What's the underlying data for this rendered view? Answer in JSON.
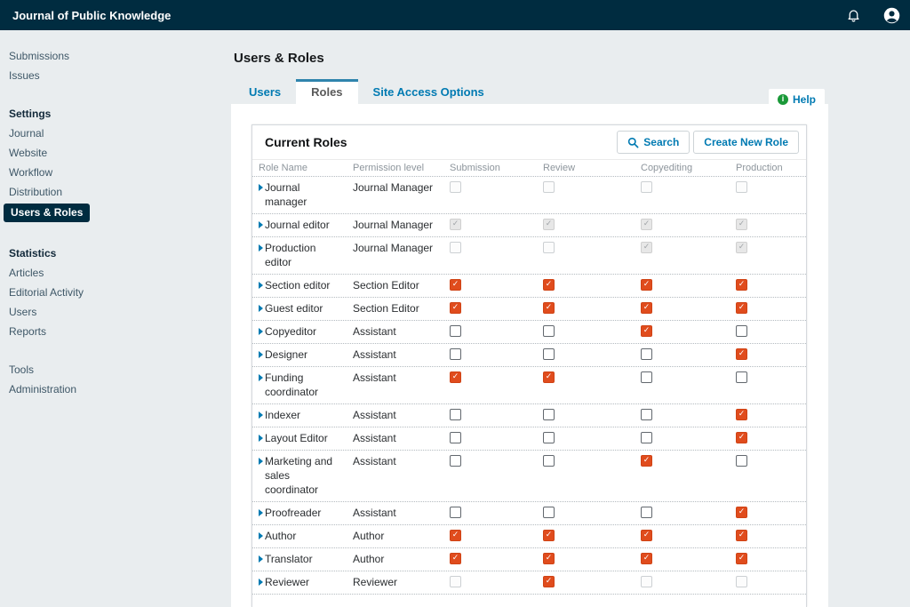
{
  "colors": {
    "topbar_bg": "#002c40",
    "accent_blue": "#007ab2",
    "checkbox_orange": "#e04c1d",
    "help_green": "#1a9938",
    "page_bg": "#e9edef"
  },
  "topbar": {
    "title": "Journal of Public Knowledge"
  },
  "sidebar": {
    "sections": [
      {
        "items": [
          "Submissions",
          "Issues"
        ]
      },
      {
        "header": "Settings",
        "items": [
          "Journal",
          "Website",
          "Workflow",
          "Distribution",
          "Users & Roles"
        ],
        "active_item": "Users & Roles"
      },
      {
        "header": "Statistics",
        "items": [
          "Articles",
          "Editorial Activity",
          "Users",
          "Reports"
        ]
      },
      {
        "items": [
          "Tools",
          "Administration"
        ]
      }
    ]
  },
  "main": {
    "title": "Users & Roles",
    "tabs": [
      "Users",
      "Roles",
      "Site Access Options"
    ],
    "active_tab": "Roles",
    "help_label": "Help"
  },
  "panel": {
    "title": "Current Roles",
    "search_label": "Search",
    "create_label": "Create New Role",
    "columns": [
      "Role Name",
      "Permission level",
      "Submission",
      "Review",
      "Copyediting",
      "Production"
    ],
    "rows": [
      {
        "name": "Journal manager",
        "level": "Journal Manager",
        "checks": [
          "unchecked-disabled",
          "unchecked-disabled",
          "unchecked-disabled",
          "unchecked-disabled"
        ]
      },
      {
        "name": "Journal editor",
        "level": "Journal Manager",
        "checks": [
          "checked-disabled",
          "checked-disabled",
          "checked-disabled",
          "checked-disabled"
        ]
      },
      {
        "name": "Production editor",
        "level": "Journal Manager",
        "checks": [
          "unchecked-disabled",
          "unchecked-disabled",
          "checked-disabled",
          "checked-disabled"
        ]
      },
      {
        "name": "Section editor",
        "level": "Section Editor",
        "checks": [
          "checked",
          "checked",
          "checked",
          "checked"
        ]
      },
      {
        "name": "Guest editor",
        "level": "Section Editor",
        "checks": [
          "checked",
          "checked",
          "checked",
          "checked"
        ]
      },
      {
        "name": "Copyeditor",
        "level": "Assistant",
        "checks": [
          "unchecked",
          "unchecked",
          "checked",
          "unchecked"
        ]
      },
      {
        "name": "Designer",
        "level": "Assistant",
        "checks": [
          "unchecked",
          "unchecked",
          "unchecked",
          "checked"
        ]
      },
      {
        "name": "Funding coordinator",
        "level": "Assistant",
        "checks": [
          "checked",
          "checked",
          "unchecked",
          "unchecked"
        ]
      },
      {
        "name": "Indexer",
        "level": "Assistant",
        "checks": [
          "unchecked",
          "unchecked",
          "unchecked",
          "checked"
        ]
      },
      {
        "name": "Layout Editor",
        "level": "Assistant",
        "checks": [
          "unchecked",
          "unchecked",
          "unchecked",
          "checked"
        ]
      },
      {
        "name": "Marketing and sales coordinator",
        "level": "Assistant",
        "checks": [
          "unchecked",
          "unchecked",
          "checked",
          "unchecked"
        ]
      },
      {
        "name": "Proofreader",
        "level": "Assistant",
        "checks": [
          "unchecked",
          "unchecked",
          "unchecked",
          "checked"
        ]
      },
      {
        "name": "Author",
        "level": "Author",
        "checks": [
          "checked",
          "checked",
          "checked",
          "checked"
        ]
      },
      {
        "name": "Translator",
        "level": "Author",
        "checks": [
          "checked",
          "checked",
          "checked",
          "checked"
        ]
      },
      {
        "name": "Reviewer",
        "level": "Reviewer",
        "checks": [
          "unchecked-disabled",
          "checked",
          "unchecked-disabled",
          "unchecked-disabled"
        ]
      }
    ]
  }
}
